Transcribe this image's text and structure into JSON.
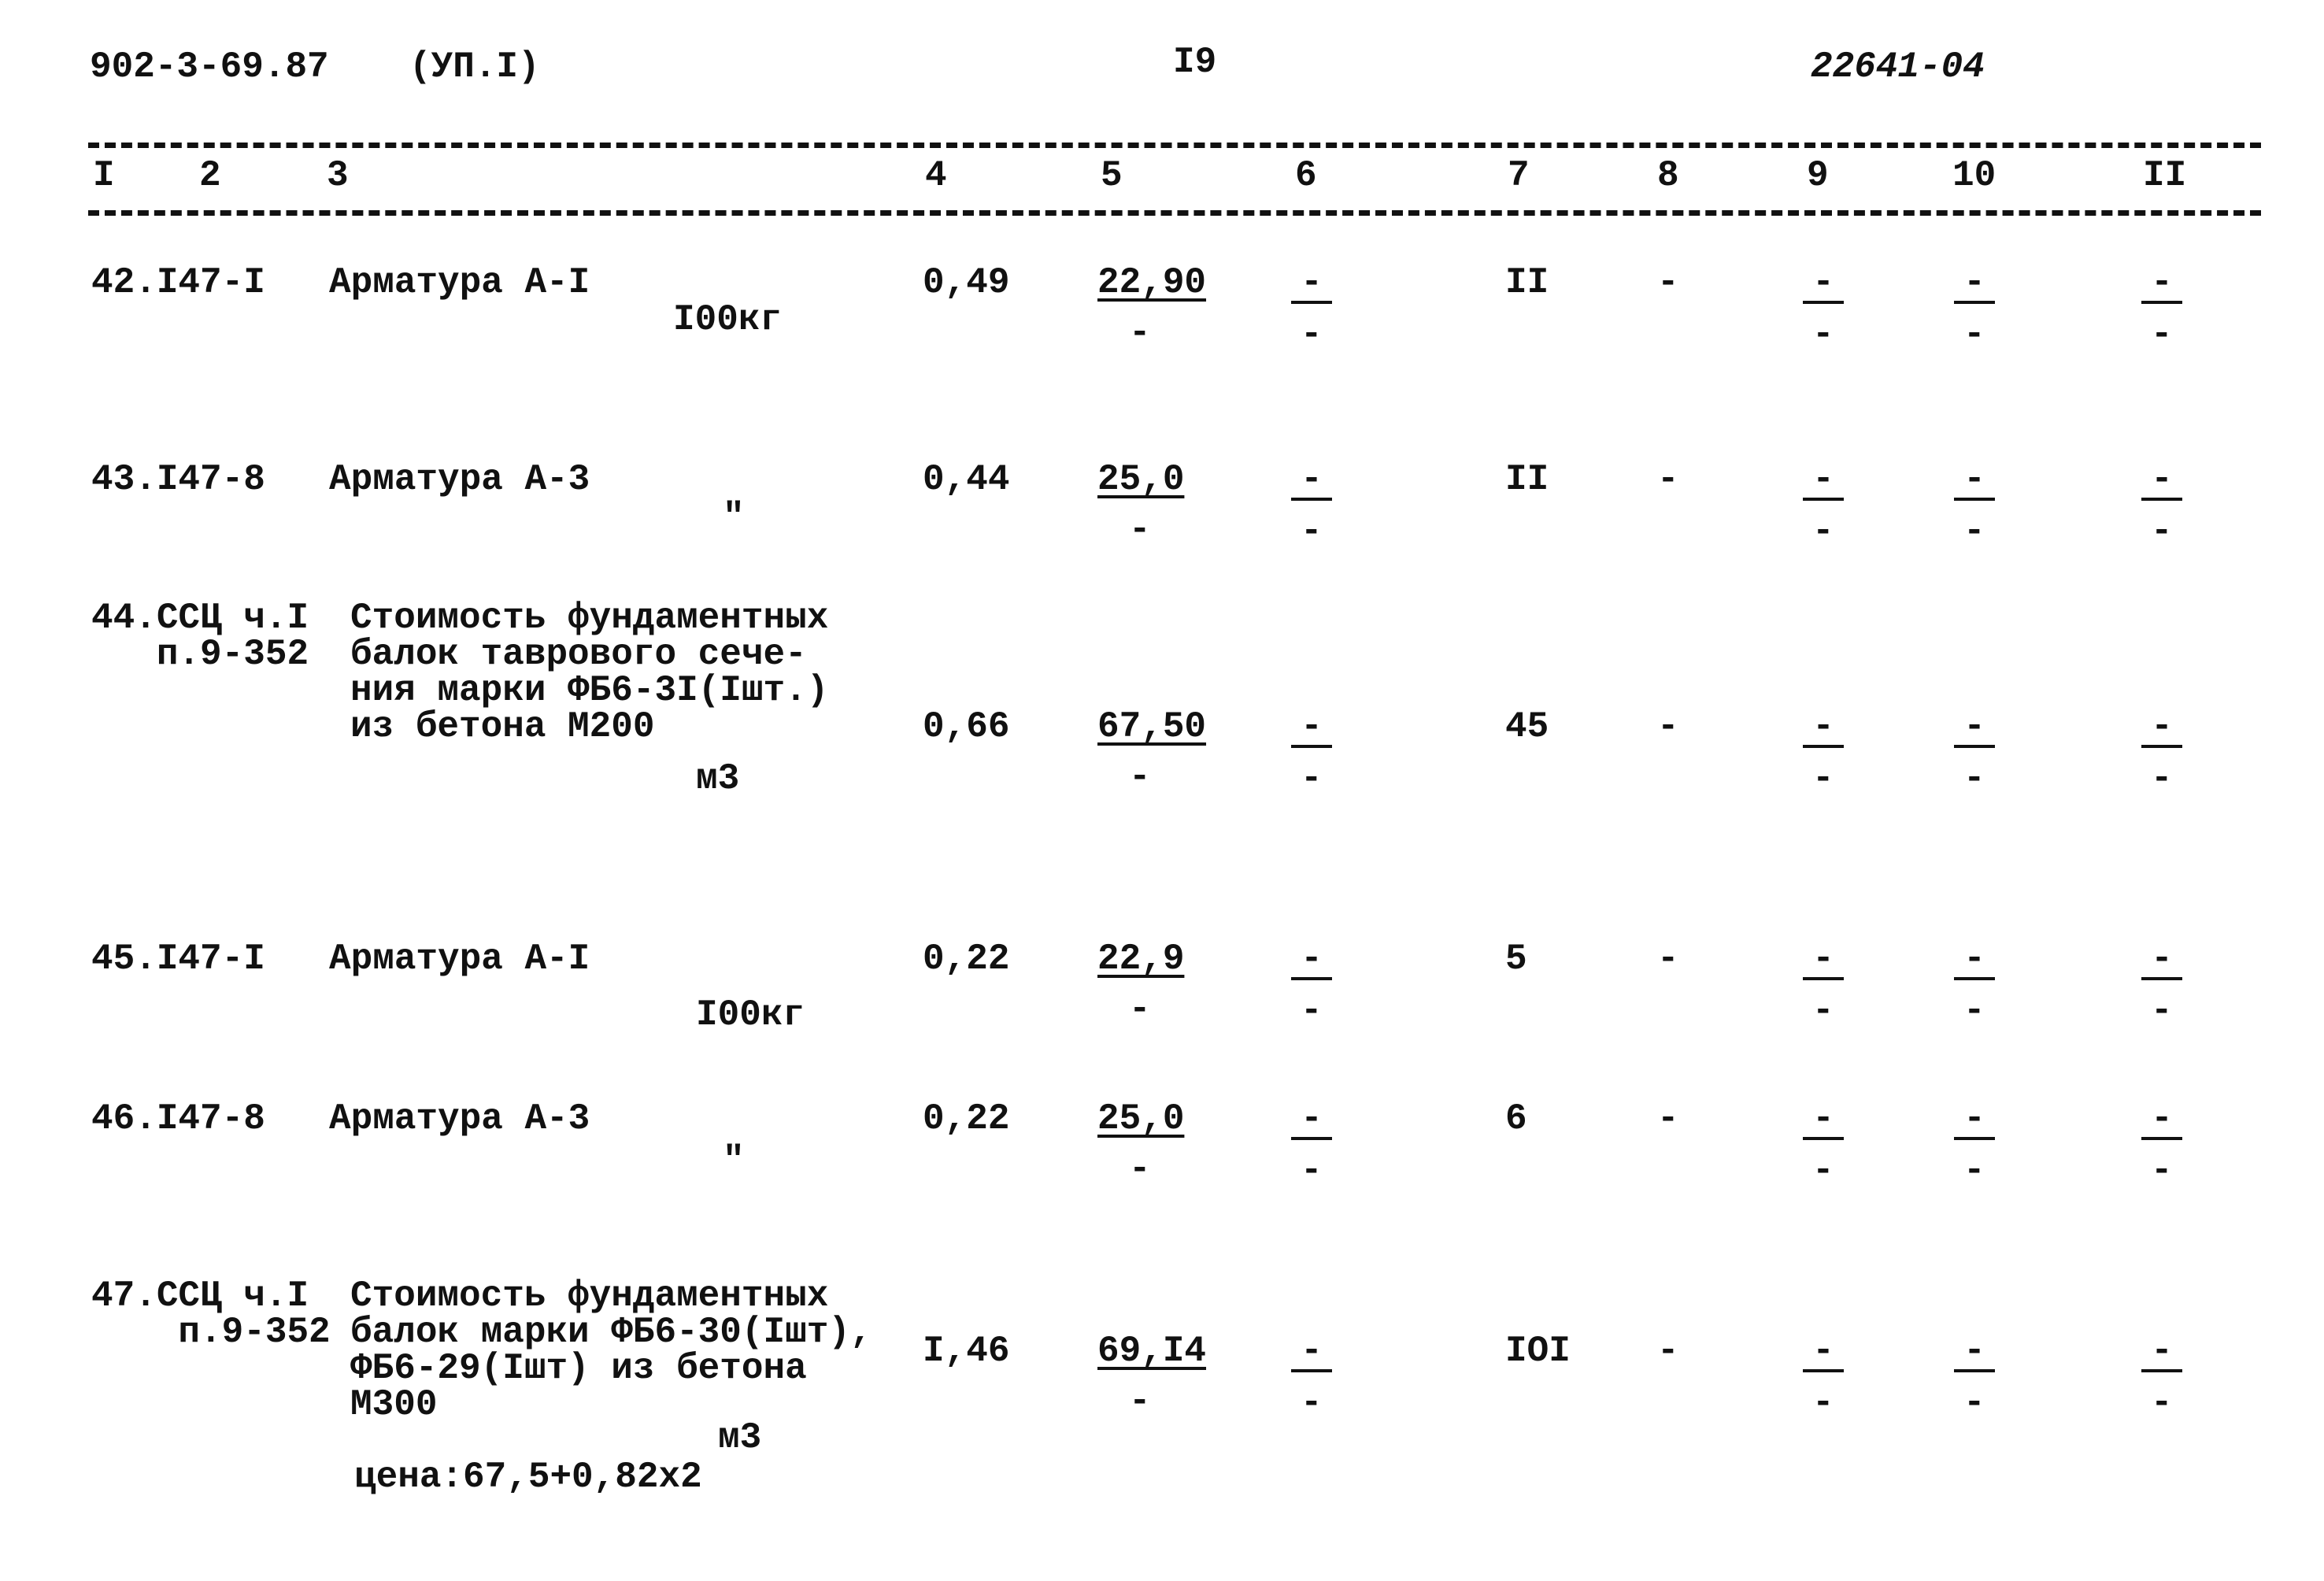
{
  "header": {
    "doc_number": "902-3-69.87",
    "album": "(УП.I)",
    "page": "I9",
    "inventory": "22641-04"
  },
  "columns": [
    "I",
    "2",
    "3",
    "4",
    "5",
    "6",
    "7",
    "8",
    "9",
    "10",
    "II"
  ],
  "rows": [
    {
      "code": [
        "42.I47-I"
      ],
      "desc": [
        "Арматура А-I"
      ],
      "unit": "I00кг",
      "c4": "0,49",
      "c5": "22,90",
      "c5_below": "-",
      "c6": "-",
      "c7": "II",
      "c8": "-",
      "c9": "-",
      "c10": "-",
      "c11": "-"
    },
    {
      "code": [
        "43.I47-8"
      ],
      "desc": [
        "Арматура А-3"
      ],
      "unit": "\"",
      "c4": "0,44",
      "c5": "25,0",
      "c5_below": "-",
      "c6": "-",
      "c7": "II",
      "c8": "-",
      "c9": "-",
      "c10": "-",
      "c11": "-"
    },
    {
      "code": [
        "44.ССЦ ч.I",
        "   п.9-352"
      ],
      "desc": [
        "Стоимость фундаментных",
        "балок таврового сече-",
        "ния марки ФБ6-3I(Iшт.)",
        "из бетона М200"
      ],
      "unit": "м3",
      "c4": "0,66",
      "c5": "67,50",
      "c5_below": "-",
      "c6": "-",
      "c7": "45",
      "c8": "-",
      "c9": "-",
      "c10": "-",
      "c11": "-"
    },
    {
      "code": [
        "45.I47-I"
      ],
      "desc": [
        "Арматура А-I"
      ],
      "unit": "I00кг",
      "c4": "0,22",
      "c5": "22,9",
      "c5_below": "-",
      "c6": "-",
      "c7": "5",
      "c8": "-",
      "c9": "-",
      "c10": "-",
      "c11": "-"
    },
    {
      "code": [
        "46.I47-8"
      ],
      "desc": [
        "Арматура А-3"
      ],
      "unit": "\"",
      "c4": "0,22",
      "c5": "25,0",
      "c5_below": "-",
      "c6": "-",
      "c7": "6",
      "c8": "-",
      "c9": "-",
      "c10": "-",
      "c11": "-"
    },
    {
      "code": [
        "47.ССЦ ч.I",
        "    п.9-352"
      ],
      "desc": [
        "Стоимость фундаментных",
        "балок марки ФБ6-30(Iшт),",
        "ФБ6-29(Iшт) из бетона",
        "М300"
      ],
      "unit": "м3",
      "note": "цена:67,5+0,82x2",
      "c4": "I,46",
      "c5": "69,I4",
      "c5_below": "-",
      "c6": "-",
      "c7": "IOI",
      "c8": "-",
      "c9": "-",
      "c10": "-",
      "c11": "-"
    }
  ]
}
